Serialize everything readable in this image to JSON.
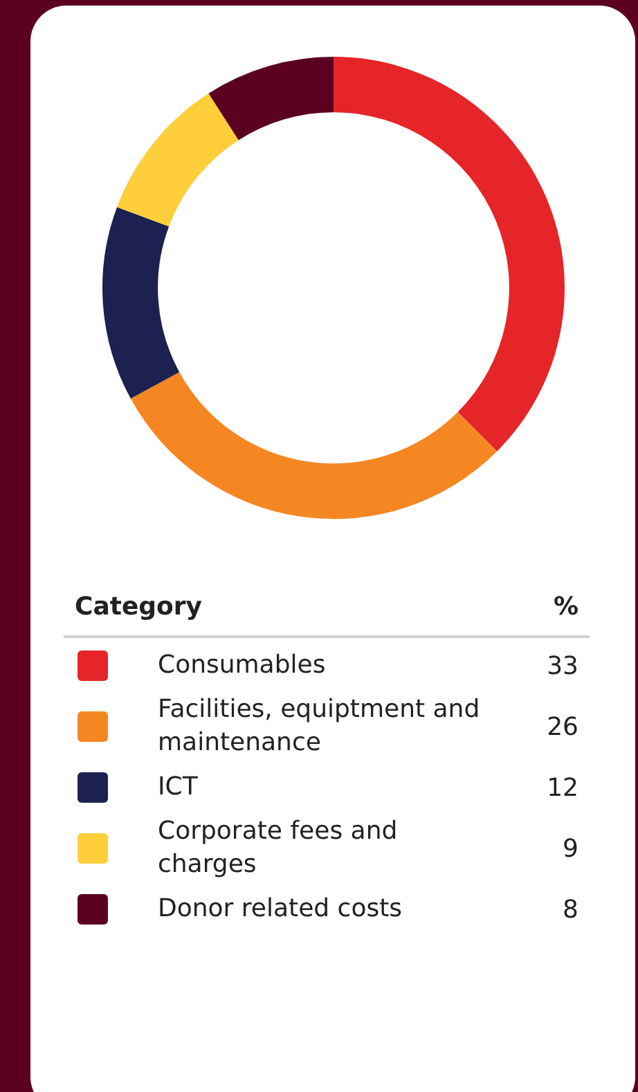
{
  "chart_data": {
    "type": "donut",
    "legend_title": "Category",
    "ylabel": "%",
    "categories": [
      "Consumables",
      "Facilities, equiptment and maintenance",
      "ICT",
      "Corporate fees and charges",
      "Donor related costs"
    ],
    "values": [
      33,
      26,
      12,
      9,
      8
    ],
    "colors": [
      "#e52528",
      "#f58723",
      "#1c2150",
      "#fecf3a",
      "#5c0020"
    ],
    "legend": "bottom",
    "data_labels": true
  }
}
